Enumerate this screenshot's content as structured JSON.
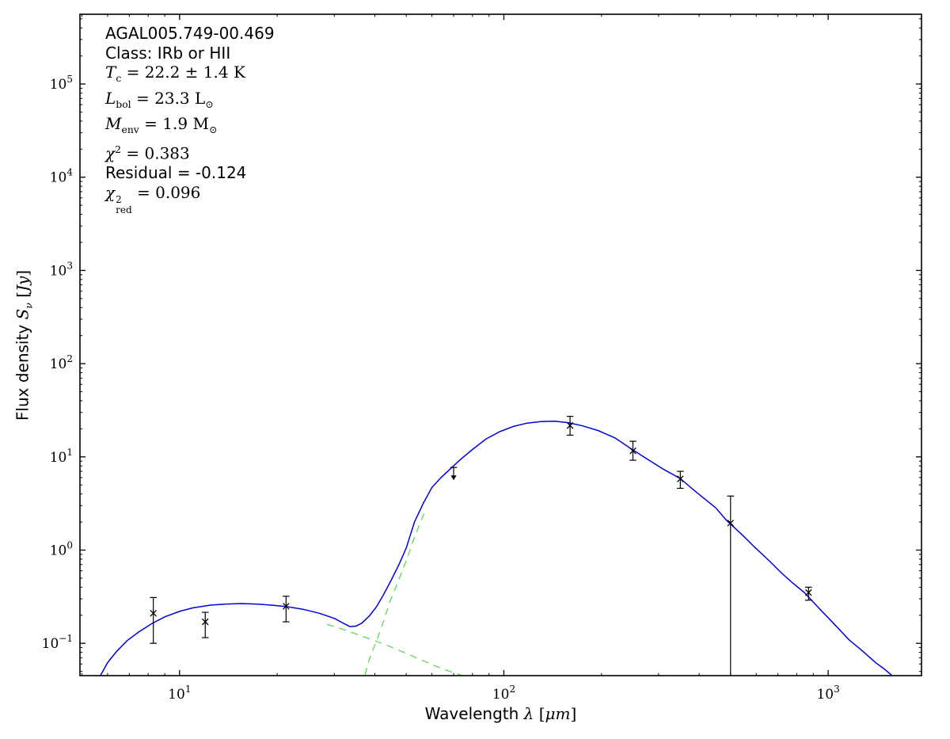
{
  "figure": {
    "background": "#ffffff",
    "frame_color": "#000000"
  },
  "chart_data": {
    "type": "line",
    "title": "",
    "xlabel": "Wavelength λ [μm]",
    "ylabel": "Flux density Sν [Jy]",
    "xscale": "log",
    "yscale": "log",
    "xlim": [
      4.93,
      1940
    ],
    "ylim": [
      0.045,
      560000
    ],
    "x_major_ticks": [
      10,
      100,
      1000
    ],
    "y_major_ticks": [
      0.1,
      1,
      10,
      100,
      1000,
      10000,
      100000
    ],
    "grid": false,
    "legend": "none",
    "x_axis": {
      "word": "Wavelength ",
      "symbol": "λ",
      "open": " [",
      "unit": "μm",
      "close": "]"
    },
    "y_axis": {
      "word": "Flux density ",
      "symbol": "S",
      "symbol_sub": "ν",
      "open": " [",
      "unit": "Jy",
      "close": "]"
    },
    "annotation": {
      "source_name": "AGAL005.749-00.469",
      "class_line": "Class: IRb or HII",
      "temperature": {
        "sym": "T",
        "sub": "c",
        "eq": " = 22.2 ± 1.4 K"
      },
      "luminosity": {
        "sym": "L",
        "sub": "bol",
        "eq": " = 23.3 L",
        "unit_sub": "⊙"
      },
      "mass": {
        "sym": "M",
        "sub": "env",
        "eq": " = 1.9 M",
        "unit_sub": "⊙"
      },
      "chi2": {
        "sym": "χ",
        "sup": "2",
        "eq": " = 0.383"
      },
      "residual": "Residual = -0.124",
      "chi2red": {
        "sym": "χ",
        "sup": "2",
        "sub": "red",
        "eq": " = 0.096"
      }
    },
    "series": [
      {
        "name": "warm-component",
        "color": "#55dc55",
        "style": "dashed",
        "points": [
          [
            28.5,
            0.16
          ],
          [
            31,
            0.146
          ],
          [
            35,
            0.126
          ],
          [
            39,
            0.11
          ],
          [
            44,
            0.094
          ],
          [
            50,
            0.078
          ],
          [
            56,
            0.0655
          ],
          [
            62,
            0.0565
          ],
          [
            68,
            0.05
          ],
          [
            74.5,
            0.0451
          ]
        ]
      },
      {
        "name": "cold-component",
        "color": "#55dc55",
        "style": "dashed",
        "points": [
          [
            37.3,
            0.046
          ],
          [
            38.6,
            0.07
          ],
          [
            40.7,
            0.111
          ],
          [
            42.1,
            0.155
          ],
          [
            44.5,
            0.278
          ],
          [
            47.1,
            0.45
          ],
          [
            49.8,
            0.74
          ],
          [
            52.5,
            1.25
          ],
          [
            55.5,
            2.05
          ],
          [
            57.5,
            2.75
          ]
        ]
      },
      {
        "name": "total-fit",
        "color": "#0000e0",
        "style": "solid",
        "points": [
          [
            5.7,
            0.045
          ],
          [
            6.0,
            0.062
          ],
          [
            6.4,
            0.082
          ],
          [
            6.9,
            0.107
          ],
          [
            7.5,
            0.133
          ],
          [
            8.2,
            0.162
          ],
          [
            9.0,
            0.192
          ],
          [
            10.0,
            0.22
          ],
          [
            11.0,
            0.24
          ],
          [
            12.5,
            0.257
          ],
          [
            14.0,
            0.264
          ],
          [
            15.5,
            0.267
          ],
          [
            17.5,
            0.263
          ],
          [
            19.5,
            0.255
          ],
          [
            21.5,
            0.247
          ],
          [
            24.0,
            0.232
          ],
          [
            27.0,
            0.21
          ],
          [
            30.0,
            0.185
          ],
          [
            32.0,
            0.164
          ],
          [
            33.5,
            0.151
          ],
          [
            35.0,
            0.153
          ],
          [
            36.5,
            0.165
          ],
          [
            38.5,
            0.197
          ],
          [
            40.5,
            0.248
          ],
          [
            42.5,
            0.33
          ],
          [
            45.0,
            0.48
          ],
          [
            47.5,
            0.7
          ],
          [
            50.0,
            1.05
          ],
          [
            53.0,
            2.0
          ],
          [
            56.5,
            3.2
          ],
          [
            60.0,
            4.7
          ],
          [
            64.0,
            6.0
          ],
          [
            68.0,
            7.3
          ],
          [
            73.0,
            9.2
          ],
          [
            80.0,
            12.0
          ],
          [
            88.0,
            15.5
          ],
          [
            97.0,
            18.6
          ],
          [
            107,
            21.2
          ],
          [
            118,
            23.0
          ],
          [
            130,
            23.9
          ],
          [
            143,
            24.1
          ],
          [
            158,
            23.3
          ],
          [
            175,
            21.5
          ],
          [
            195,
            19.2
          ],
          [
            220,
            16.0
          ],
          [
            245,
            12.4
          ],
          [
            275,
            9.6
          ],
          [
            310,
            7.4
          ],
          [
            350,
            5.85
          ],
          [
            395,
            4.1
          ],
          [
            450,
            2.85
          ],
          [
            485,
            2.1
          ],
          [
            550,
            1.4
          ],
          [
            591,
            1.09
          ],
          [
            660,
            0.76
          ],
          [
            716,
            0.573
          ],
          [
            780,
            0.44
          ],
          [
            845,
            0.35
          ],
          [
            960,
            0.218
          ],
          [
            1040,
            0.163
          ],
          [
            1160,
            0.109
          ],
          [
            1280,
            0.082
          ],
          [
            1400,
            0.062
          ],
          [
            1490,
            0.053
          ],
          [
            1575,
            0.045
          ]
        ]
      }
    ],
    "scatter": {
      "name": "photometry",
      "color": "#000000",
      "marker": "x",
      "points": [
        {
          "lambda": 8.3,
          "flux": 0.21,
          "upper": 0.31,
          "lower": 0.1
        },
        {
          "lambda": 12.0,
          "flux": 0.17,
          "upper": 0.215,
          "lower": 0.115
        },
        {
          "lambda": 21.3,
          "flux": 0.25,
          "upper": 0.32,
          "lower": 0.17
        },
        {
          "lambda": 70.0,
          "flux": 6.9,
          "upper": 7.7,
          "lower": 6.2,
          "marker": "down-arrow"
        },
        {
          "lambda": 160.0,
          "flux": 21.7,
          "upper": 27.2,
          "lower": 17.1
        },
        {
          "lambda": 250.0,
          "flux": 11.6,
          "upper": 14.7,
          "lower": 9.2
        },
        {
          "lambda": 350.0,
          "flux": 5.8,
          "upper": 7.0,
          "lower": 4.6
        },
        {
          "lambda": 500.0,
          "flux": 1.95,
          "upper": 3.8,
          "lower": 0.045
        },
        {
          "lambda": 870.0,
          "flux": 0.35,
          "upper": 0.4,
          "lower": 0.29
        }
      ]
    }
  }
}
